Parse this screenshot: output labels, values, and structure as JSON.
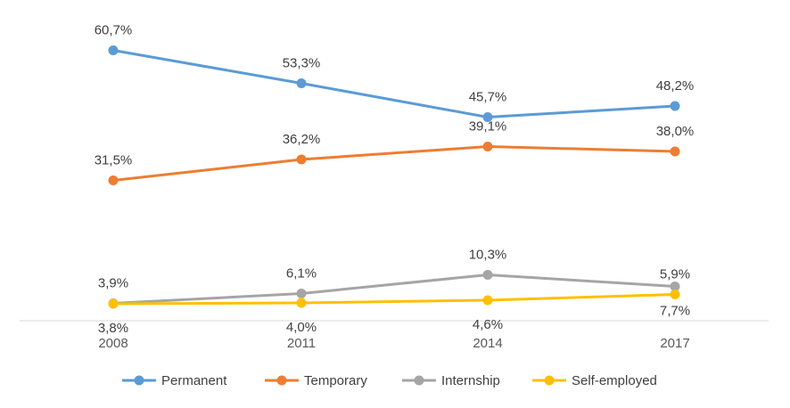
{
  "chart_data": {
    "type": "line",
    "categories": [
      "2008",
      "2011",
      "2014",
      "2017"
    ],
    "series": [
      {
        "name": "Permanent",
        "color": "#5B9BD5",
        "values": [
          60.7,
          53.3,
          45.7,
          48.2
        ],
        "labels": [
          "60,7%",
          "53,3%",
          "45,7%",
          "48,2%"
        ]
      },
      {
        "name": "Temporary",
        "color": "#ED7D31",
        "values": [
          31.5,
          36.2,
          39.1,
          38.0
        ],
        "labels": [
          "31,5%",
          "36,2%",
          "39,1%",
          "38,0%"
        ]
      },
      {
        "name": "Internship",
        "color": "#A5A5A5",
        "values": [
          3.9,
          6.1,
          10.3,
          7.7
        ],
        "labels": [
          "3,9%",
          "6,1%",
          "10,3%",
          "7,7%"
        ]
      },
      {
        "name": "Self-employed",
        "color": "#FFC000",
        "values": [
          3.8,
          4.0,
          4.6,
          5.9
        ],
        "labels": [
          "3,8%",
          "4,0%",
          "4,6%",
          "5,9%"
        ]
      }
    ],
    "ylim": [
      0,
      66
    ],
    "grid": false,
    "legend": "bottom",
    "title": "",
    "xlabel": "",
    "ylabel": ""
  }
}
